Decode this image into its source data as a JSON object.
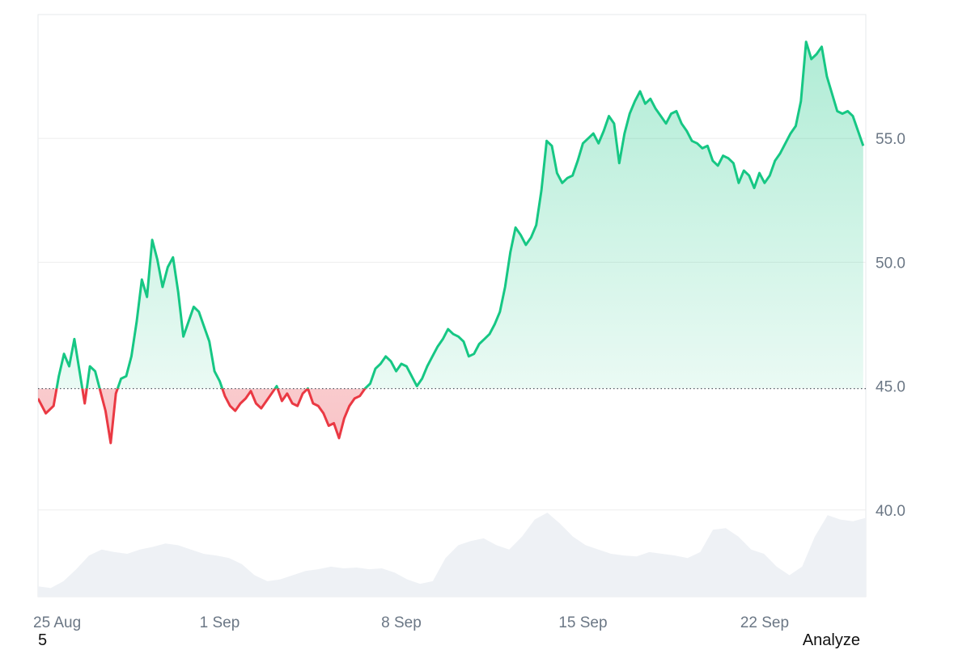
{
  "chart_data": {
    "type": "area",
    "title": "",
    "xlabel": "",
    "ylabel": "",
    "baseline": 44.9,
    "ylim": [
      36.5,
      60
    ],
    "y_ticks": [
      40.0,
      45.0,
      50.0,
      55.0
    ],
    "y_tick_labels": [
      "40.0",
      "45.0",
      "50.0",
      "55.0"
    ],
    "x_tick_labels": [
      "25 Aug",
      "1 Sep",
      "8 Sep",
      "15 Sep",
      "22 Sep"
    ],
    "x_tick_days": [
      0,
      7,
      14,
      21,
      28
    ],
    "x_range_days": [
      0,
      31.9
    ],
    "grid": true,
    "colors": {
      "above": "#16c784",
      "below": "#ea3943",
      "volume": "#eef1f5",
      "grid": "#eeeeee"
    },
    "series": [
      {
        "values": [
          [
            0.0,
            44.5
          ],
          [
            0.3,
            43.9
          ],
          [
            0.6,
            44.2
          ],
          [
            0.8,
            45.4
          ],
          [
            1.0,
            46.3
          ],
          [
            1.2,
            45.8
          ],
          [
            1.4,
            46.9
          ],
          [
            1.6,
            45.6
          ],
          [
            1.8,
            44.3
          ],
          [
            2.0,
            45.8
          ],
          [
            2.2,
            45.6
          ],
          [
            2.4,
            44.8
          ],
          [
            2.6,
            44.0
          ],
          [
            2.8,
            42.7
          ],
          [
            3.0,
            44.7
          ],
          [
            3.2,
            45.3
          ],
          [
            3.4,
            45.4
          ],
          [
            3.6,
            46.2
          ],
          [
            3.8,
            47.6
          ],
          [
            4.0,
            49.3
          ],
          [
            4.2,
            48.6
          ],
          [
            4.4,
            50.9
          ],
          [
            4.6,
            50.1
          ],
          [
            4.8,
            49.0
          ],
          [
            5.0,
            49.8
          ],
          [
            5.2,
            50.2
          ],
          [
            5.4,
            48.8
          ],
          [
            5.6,
            47.0
          ],
          [
            5.8,
            47.6
          ],
          [
            6.0,
            48.2
          ],
          [
            6.2,
            48.0
          ],
          [
            6.4,
            47.4
          ],
          [
            6.6,
            46.8
          ],
          [
            6.8,
            45.6
          ],
          [
            7.0,
            45.2
          ],
          [
            7.2,
            44.6
          ],
          [
            7.4,
            44.2
          ],
          [
            7.6,
            44.0
          ],
          [
            7.8,
            44.3
          ],
          [
            8.0,
            44.5
          ],
          [
            8.2,
            44.8
          ],
          [
            8.4,
            44.3
          ],
          [
            8.6,
            44.1
          ],
          [
            8.8,
            44.4
          ],
          [
            9.0,
            44.7
          ],
          [
            9.2,
            45.0
          ],
          [
            9.4,
            44.4
          ],
          [
            9.6,
            44.7
          ],
          [
            9.8,
            44.3
          ],
          [
            10.0,
            44.2
          ],
          [
            10.2,
            44.7
          ],
          [
            10.4,
            44.9
          ],
          [
            10.6,
            44.3
          ],
          [
            10.8,
            44.2
          ],
          [
            11.0,
            43.9
          ],
          [
            11.2,
            43.4
          ],
          [
            11.4,
            43.5
          ],
          [
            11.6,
            42.9
          ],
          [
            11.8,
            43.7
          ],
          [
            12.0,
            44.2
          ],
          [
            12.2,
            44.5
          ],
          [
            12.4,
            44.6
          ],
          [
            12.6,
            44.9
          ],
          [
            12.8,
            45.1
          ],
          [
            13.0,
            45.7
          ],
          [
            13.2,
            45.9
          ],
          [
            13.4,
            46.2
          ],
          [
            13.6,
            46.0
          ],
          [
            13.8,
            45.6
          ],
          [
            14.0,
            45.9
          ],
          [
            14.2,
            45.8
          ],
          [
            14.4,
            45.4
          ],
          [
            14.6,
            45.0
          ],
          [
            14.8,
            45.3
          ],
          [
            15.0,
            45.8
          ],
          [
            15.2,
            46.2
          ],
          [
            15.4,
            46.6
          ],
          [
            15.6,
            46.9
          ],
          [
            15.8,
            47.3
          ],
          [
            16.0,
            47.1
          ],
          [
            16.2,
            47.0
          ],
          [
            16.4,
            46.8
          ],
          [
            16.6,
            46.2
          ],
          [
            16.8,
            46.3
          ],
          [
            17.0,
            46.7
          ],
          [
            17.2,
            46.9
          ],
          [
            17.4,
            47.1
          ],
          [
            17.6,
            47.5
          ],
          [
            17.8,
            48.0
          ],
          [
            18.0,
            49.0
          ],
          [
            18.2,
            50.4
          ],
          [
            18.4,
            51.4
          ],
          [
            18.6,
            51.1
          ],
          [
            18.8,
            50.7
          ],
          [
            19.0,
            51.0
          ],
          [
            19.2,
            51.5
          ],
          [
            19.4,
            52.9
          ],
          [
            19.6,
            54.9
          ],
          [
            19.8,
            54.7
          ],
          [
            20.0,
            53.6
          ],
          [
            20.2,
            53.2
          ],
          [
            20.4,
            53.4
          ],
          [
            20.6,
            53.5
          ],
          [
            20.8,
            54.1
          ],
          [
            21.0,
            54.8
          ],
          [
            21.2,
            55.0
          ],
          [
            21.4,
            55.2
          ],
          [
            21.6,
            54.8
          ],
          [
            21.8,
            55.3
          ],
          [
            22.0,
            55.9
          ],
          [
            22.2,
            55.6
          ],
          [
            22.4,
            54.0
          ],
          [
            22.6,
            55.2
          ],
          [
            22.8,
            56.0
          ],
          [
            23.0,
            56.5
          ],
          [
            23.2,
            56.9
          ],
          [
            23.4,
            56.4
          ],
          [
            23.6,
            56.6
          ],
          [
            23.8,
            56.2
          ],
          [
            24.0,
            55.9
          ],
          [
            24.2,
            55.6
          ],
          [
            24.4,
            56.0
          ],
          [
            24.6,
            56.1
          ],
          [
            24.8,
            55.6
          ],
          [
            25.0,
            55.3
          ],
          [
            25.2,
            54.9
          ],
          [
            25.4,
            54.8
          ],
          [
            25.6,
            54.6
          ],
          [
            25.8,
            54.7
          ],
          [
            26.0,
            54.1
          ],
          [
            26.2,
            53.9
          ],
          [
            26.4,
            54.3
          ],
          [
            26.6,
            54.2
          ],
          [
            26.8,
            54.0
          ],
          [
            27.0,
            53.2
          ],
          [
            27.2,
            53.7
          ],
          [
            27.4,
            53.5
          ],
          [
            27.6,
            53.0
          ],
          [
            27.8,
            53.6
          ],
          [
            28.0,
            53.2
          ],
          [
            28.2,
            53.5
          ],
          [
            28.4,
            54.1
          ],
          [
            28.6,
            54.4
          ],
          [
            28.8,
            54.8
          ],
          [
            29.0,
            55.2
          ],
          [
            29.2,
            55.5
          ],
          [
            29.4,
            56.5
          ],
          [
            29.6,
            58.9
          ],
          [
            29.8,
            58.2
          ],
          [
            30.0,
            58.4
          ],
          [
            30.2,
            58.7
          ],
          [
            30.4,
            57.5
          ],
          [
            30.6,
            56.8
          ],
          [
            30.8,
            56.1
          ],
          [
            31.0,
            56.0
          ],
          [
            31.2,
            56.1
          ],
          [
            31.4,
            55.9
          ],
          [
            31.6,
            55.3
          ],
          [
            31.8,
            54.7
          ]
        ]
      }
    ]
  },
  "volume_bars": [
    0.12,
    0.1,
    0.18,
    0.32,
    0.48,
    0.55,
    0.52,
    0.5,
    0.55,
    0.58,
    0.62,
    0.6,
    0.55,
    0.5,
    0.48,
    0.45,
    0.38,
    0.25,
    0.18,
    0.2,
    0.25,
    0.3,
    0.32,
    0.35,
    0.33,
    0.34,
    0.32,
    0.33,
    0.28,
    0.2,
    0.15,
    0.18,
    0.45,
    0.6,
    0.65,
    0.68,
    0.6,
    0.55,
    0.7,
    0.9,
    0.98,
    0.85,
    0.7,
    0.6,
    0.55,
    0.5,
    0.48,
    0.47,
    0.52,
    0.5,
    0.48,
    0.45,
    0.52,
    0.78,
    0.8,
    0.7,
    0.55,
    0.5,
    0.35,
    0.25,
    0.35,
    0.7,
    0.95,
    0.9,
    0.88,
    0.92
  ],
  "footer": {
    "left": "5",
    "right": "Analyze"
  }
}
